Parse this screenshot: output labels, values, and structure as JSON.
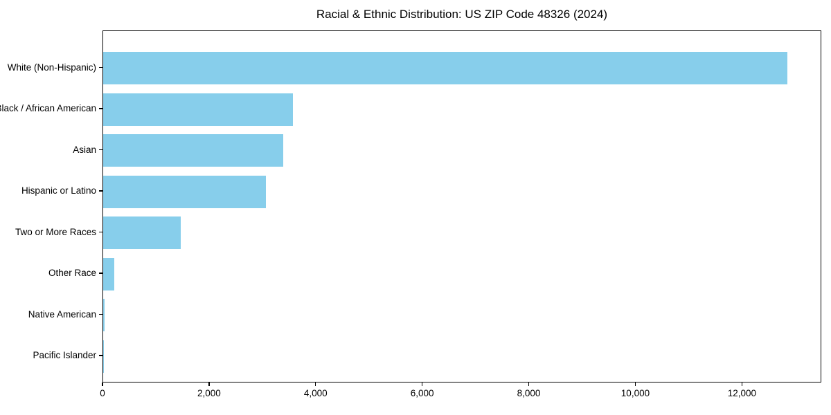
{
  "chart_data": {
    "type": "bar",
    "orientation": "horizontal",
    "title": "Racial & Ethnic Distribution: US ZIP Code 48326 (2024)",
    "categories": [
      "White (Non-Hispanic)",
      "Black / African American",
      "Asian",
      "Hispanic or Latino",
      "Two or More Races",
      "Other Race",
      "Native American",
      "Pacific Islander"
    ],
    "values": [
      12845,
      3555,
      3385,
      3050,
      1450,
      210,
      20,
      5
    ],
    "xlabel": "",
    "ylabel": "",
    "xlim": [
      0,
      13490
    ],
    "xticks": [
      0,
      2000,
      4000,
      6000,
      8000,
      10000,
      12000
    ],
    "xtick_labels": [
      "0",
      "2,000",
      "4,000",
      "6,000",
      "8,000",
      "10,000",
      "12,000"
    ],
    "bar_color": "#87CEEB",
    "axis_color": "#000000",
    "background_color": "#ffffff",
    "grid": false,
    "legend": null
  }
}
